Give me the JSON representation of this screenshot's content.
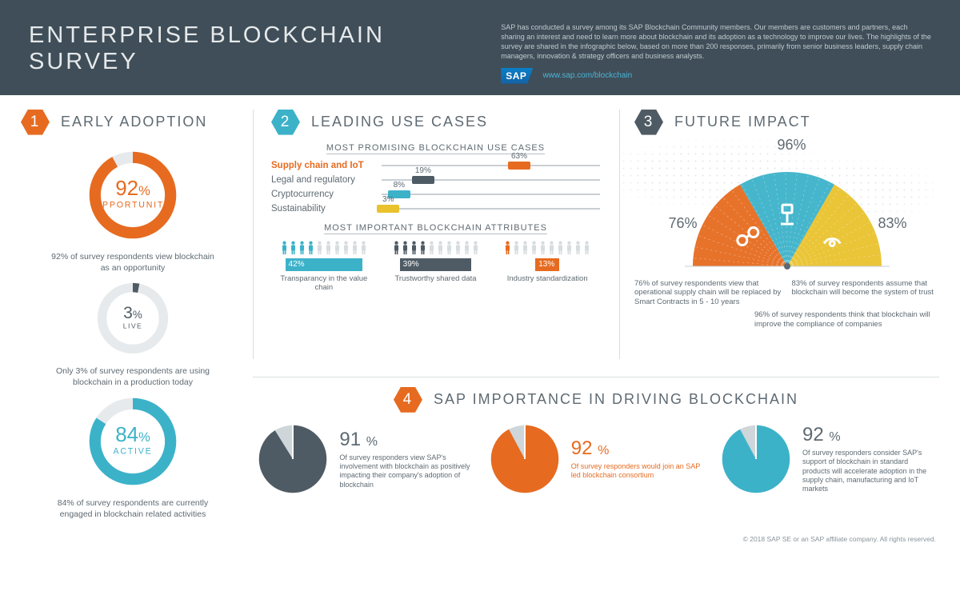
{
  "header": {
    "title": "ENTERPRISE BLOCKCHAIN SURVEY",
    "description": "SAP has conducted a survey among its SAP Blockchain Community members. Our members are customers and partners, each sharing an interest and need to learn more about blockchain and its adoption as a technology to improve our lives. The highlights of the survey are shared in the infographic below, based on more than 200 responses, primarily from senior business leaders, supply chain managers, innovation & strategy officers and business analysts.",
    "brand": "SAP",
    "url": "www.sap.com/blockchain"
  },
  "colors": {
    "orange": "#e66b20",
    "teal": "#3cb2c9",
    "blue": "#2e7bb5",
    "slate": "#4f5b64",
    "lightgrey": "#cfd6da",
    "yellow": "#e9c22d",
    "header_bg": "#3f4e58"
  },
  "section1": {
    "number": "1",
    "title": "EARLY ADOPTION",
    "donuts": [
      {
        "value": 92,
        "label": "OPPORTUNITY",
        "color": "#e66b20",
        "track": "#e7eaec",
        "caption": "92% of survey respondents view blockchain as an opportunity",
        "size": "big",
        "display": "92"
      },
      {
        "value": 3,
        "label": "LIVE",
        "color": "#4f5b64",
        "track": "#e7eaec",
        "caption": "Only 3% of survey respondents are using blockchain in a production today",
        "size": "small",
        "display": "3"
      },
      {
        "value": 84,
        "label": "ACTIVE",
        "color": "#3cb2c9",
        "track": "#e7eaec",
        "caption": "84% of survey respondents are currently engaged in blockchain related activities",
        "size": "big",
        "display": "84"
      }
    ]
  },
  "section2": {
    "number": "2",
    "title": "LEADING USE CASES",
    "subheading1": "MOST PROMISING BLOCKCHAIN USE CASES",
    "bars": [
      {
        "label": "Supply chain and IoT",
        "value": 63,
        "color": "#e66b20",
        "highlight": true
      },
      {
        "label": "Legal and regulatory",
        "value": 19,
        "color": "#4f5b64",
        "highlight": false
      },
      {
        "label": "Cryptocurrency",
        "value": 8,
        "color": "#3cb2c9",
        "highlight": false
      },
      {
        "label": "Sustainability",
        "value": 3,
        "color": "#e9c22d",
        "highlight": false
      }
    ],
    "subheading2": "MOST IMPORTANT BLOCKCHAIN ATTRIBUTES",
    "attributes": [
      {
        "value": 42,
        "label": "Transparancy in the value chain",
        "color": "#3cb2c9"
      },
      {
        "value": 39,
        "label": "Trustworthy shared data",
        "color": "#4f5b64"
      },
      {
        "value": 13,
        "label": "Industry standardization",
        "color": "#e66b20"
      }
    ]
  },
  "section3": {
    "number": "3",
    "title": "FUTURE IMPACT",
    "slices": [
      {
        "value": 76,
        "color": "#e66b20",
        "icon": "link",
        "pct_pos": "left"
      },
      {
        "value": 96,
        "color": "#3cb2c9",
        "icon": "gavel",
        "pct_pos": "top"
      },
      {
        "value": 83,
        "color": "#e9c22d",
        "icon": "hands",
        "pct_pos": "right"
      }
    ],
    "captions": [
      "76% of survey respondents view that operational supply chain will be replaced by Smart Contracts in 5 - 10 years",
      "83% of survey respondents assume that blockchain will become the system of trust"
    ],
    "caption_extra": "96% of survey respondents think that blockchain will improve the compliance of companies"
  },
  "section4": {
    "number": "4",
    "title": "SAP IMPORTANCE IN DRIVING BLOCKCHAIN",
    "pies": [
      {
        "value": 91,
        "color": "#4f5b64",
        "rest": "#cfd6da",
        "text": "Of survey responders view SAP's involvement with blockchain as positively impacting their company's adoption of blockchain",
        "highlight": false
      },
      {
        "value": 92,
        "color": "#e66b20",
        "rest": "#cfd6da",
        "text": "Of survey responders would join an SAP led blockchain consortium",
        "highlight": true
      },
      {
        "value": 92,
        "color": "#3cb2c9",
        "rest": "#cfd6da",
        "text": "Of survey responders consider SAP's support of blockchain in standard products will accelerate adoption in the supply chain, manufacturing and IoT markets",
        "highlight": false
      }
    ]
  },
  "footer": "© 2018 SAP SE or an SAP affiliate company. All rights reserved."
}
